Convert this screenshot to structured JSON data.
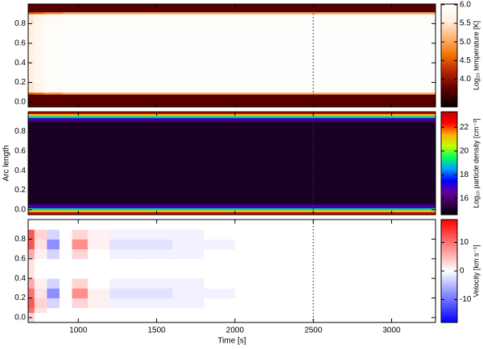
{
  "chart_data": [
    {
      "type": "heatmap",
      "xlim": [
        680,
        3280
      ],
      "ylim": [
        -0.05,
        1.0
      ],
      "yticks": [
        {
          "value": 0,
          "label": "0.0"
        },
        0.2,
        0.4,
        0.6,
        0.8
      ],
      "vline": 2500,
      "x_edges": [
        680,
        720,
        780,
        900,
        3280
      ],
      "y_edges": [
        -0.05,
        0.08,
        0.1,
        0.2,
        0.8,
        0.9,
        0.92,
        1.0
      ],
      "z": [
        [
          3.7,
          3.7,
          3.7,
          3.7
        ],
        [
          4.5,
          4.6,
          4.8,
          5.0
        ],
        [
          5.5,
          5.7,
          5.9,
          5.95
        ],
        [
          5.6,
          5.8,
          5.95,
          6.0
        ],
        [
          5.5,
          5.7,
          5.9,
          5.95
        ],
        [
          4.5,
          4.6,
          4.8,
          5.0
        ],
        [
          3.7,
          3.7,
          3.7,
          3.7
        ]
      ],
      "colormap": [
        "#000000",
        "#5a0000",
        "#b02000",
        "#f07000",
        "#ffb070",
        "#fff0e0",
        "#ffffff"
      ],
      "zlim": [
        3.25,
        6.02
      ],
      "zticks": [
        {
          "value": 4,
          "label": "4.0"
        },
        4.5,
        {
          "value": 5,
          "label": "5.0"
        },
        5.5,
        {
          "value": 6,
          "label": "6.0"
        }
      ],
      "colorbar_label": "Log₁₀ temperature [K]"
    },
    {
      "type": "heatmap",
      "xlim": [
        680,
        3280
      ],
      "ylim": [
        -0.05,
        1.0
      ],
      "yticks": [
        {
          "value": 0,
          "label": "0.0"
        },
        0.2,
        0.4,
        0.6,
        0.8
      ],
      "ylabel": "Arc length",
      "vline": 2500,
      "x_edges": [
        680,
        3280
      ],
      "y_edges": [
        -0.05,
        -0.02,
        0.0,
        0.02,
        0.04,
        0.06,
        0.9,
        0.92,
        0.94,
        0.96,
        0.98,
        1.0
      ],
      "z": [
        [
          23
        ],
        [
          21
        ],
        [
          19
        ],
        [
          17
        ],
        [
          16
        ],
        [
          15.1
        ],
        [
          16
        ],
        [
          17
        ],
        [
          19
        ],
        [
          21
        ],
        [
          23
        ]
      ],
      "colormap": [
        "#000000",
        "#3a0050",
        "#6000a0",
        "#0000ff",
        "#00a0ff",
        "#00ff60",
        "#c0ff00",
        "#ffb000",
        "#ff0000",
        "#c00000"
      ],
      "zlim": [
        14.65,
        23.3
      ],
      "zticks": [
        16,
        18,
        20,
        22
      ],
      "colorbar_label": "Log₁₀ particle density [cm⁻³]"
    },
    {
      "type": "heatmap",
      "xlim": [
        680,
        3280
      ],
      "ylim": [
        -0.05,
        1.0
      ],
      "yticks": [
        {
          "value": 0,
          "label": "0.0"
        },
        0.2,
        0.4,
        0.6,
        0.8
      ],
      "xticks": [
        1000,
        1500,
        2000,
        2500,
        3000
      ],
      "xlabel": "Time [s]",
      "vline": 2500,
      "x_edges": [
        680,
        720,
        800,
        880,
        960,
        1060,
        1200,
        1400,
        1600,
        1800,
        2000,
        2400,
        2800,
        3280
      ],
      "y_edges": [
        -0.05,
        0.05,
        0.1,
        0.2,
        0.3,
        0.4,
        0.6,
        0.7,
        0.8,
        0.9,
        1.0
      ],
      "z": [
        [
          3,
          0,
          0,
          0,
          0,
          0,
          0,
          0,
          0,
          0,
          0,
          0,
          0
        ],
        [
          10,
          2,
          0,
          0,
          0,
          0,
          0,
          0,
          0,
          0,
          0,
          0,
          0
        ],
        [
          12,
          3,
          -3,
          0,
          3,
          1,
          -1,
          -1,
          -1,
          0,
          0,
          0,
          0
        ],
        [
          10,
          2,
          -8,
          0,
          8,
          1,
          -2,
          -2,
          -1,
          -1,
          0,
          0,
          0
        ],
        [
          6,
          1,
          -3,
          0,
          3,
          0,
          -1,
          -1,
          -1,
          0,
          0,
          0,
          0
        ],
        [
          2,
          0,
          0,
          0,
          0,
          0,
          0,
          0,
          0,
          0,
          0,
          0,
          0
        ],
        [
          6,
          1,
          -3,
          0,
          3,
          0,
          -1,
          -1,
          -1,
          0,
          0,
          0,
          0
        ],
        [
          12,
          2,
          -8,
          0,
          8,
          1,
          -2,
          -2,
          -1,
          -1,
          0,
          0,
          0
        ],
        [
          12,
          3,
          -3,
          0,
          3,
          1,
          -1,
          -1,
          -1,
          0,
          0,
          0,
          0
        ],
        [
          0,
          0,
          0,
          0,
          0,
          0,
          0,
          0,
          0,
          0,
          0,
          0,
          0
        ]
      ],
      "colormap": [
        "#0000ff",
        "#ffffff",
        "#ff0000"
      ],
      "zlim": [
        -18,
        18
      ],
      "zticks": [
        -10,
        0,
        10
      ],
      "colorbar_label": "Velocity [km s⁻¹]"
    }
  ]
}
